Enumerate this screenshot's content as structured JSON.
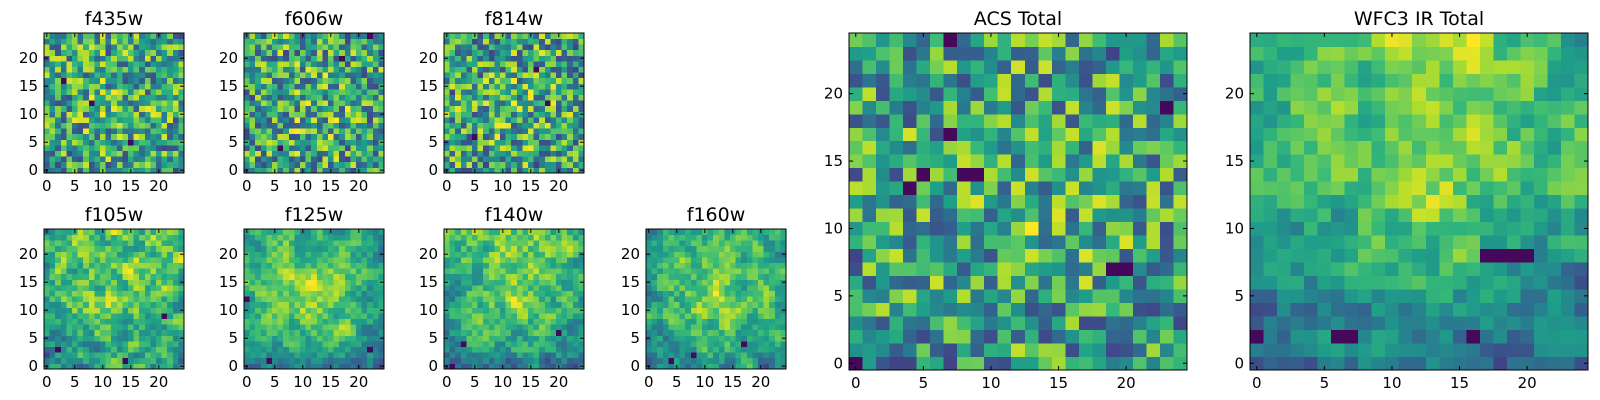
{
  "chart_data": [
    {
      "type": "heatmap",
      "title": "f435w",
      "grid": [
        25,
        25
      ],
      "x_ticks": [
        "0",
        "5",
        "10",
        "15",
        "20"
      ],
      "y_ticks": [
        "0",
        "5",
        "10",
        "15",
        "20"
      ],
      "xlim": [
        -0.5,
        24.5
      ],
      "ylim": [
        -0.5,
        24.5
      ],
      "colormap": "viridis",
      "texture": "noise",
      "seed": 11,
      "center_bias": 0.15,
      "top_bias": 0.0,
      "dark_spots": [
        [
          8,
          12
        ],
        [
          3,
          16
        ],
        [
          15,
          5
        ]
      ]
    },
    {
      "type": "heatmap",
      "title": "f606w",
      "grid": [
        25,
        25
      ],
      "x_ticks": [
        "0",
        "5",
        "10",
        "15",
        "20"
      ],
      "y_ticks": [
        "0",
        "5",
        "10",
        "15",
        "20"
      ],
      "xlim": [
        -0.5,
        24.5
      ],
      "ylim": [
        -0.5,
        24.5
      ],
      "colormap": "viridis",
      "texture": "noise",
      "seed": 23,
      "center_bias": 0.15,
      "top_bias": 0.0,
      "dark_spots": [
        [
          22,
          24
        ],
        [
          6,
          4
        ],
        [
          17,
          20
        ]
      ]
    },
    {
      "type": "heatmap",
      "title": "f814w",
      "grid": [
        25,
        25
      ],
      "x_ticks": [
        "0",
        "5",
        "10",
        "15",
        "20"
      ],
      "y_ticks": [
        "0",
        "5",
        "10",
        "15",
        "20"
      ],
      "xlim": [
        -0.5,
        24.5
      ],
      "ylim": [
        -0.5,
        24.5
      ],
      "colormap": "viridis",
      "texture": "noise",
      "seed": 37,
      "center_bias": 0.15,
      "top_bias": 0.0,
      "dark_spots": [
        [
          16,
          18
        ],
        [
          18,
          12
        ],
        [
          5,
          6
        ]
      ]
    },
    {
      "type": "heatmap",
      "title": "f105w",
      "grid": [
        25,
        25
      ],
      "x_ticks": [
        "0",
        "5",
        "10",
        "15",
        "20"
      ],
      "y_ticks": [
        "0",
        "5",
        "10",
        "15",
        "20"
      ],
      "xlim": [
        -0.5,
        24.5
      ],
      "ylim": [
        -0.5,
        24.5
      ],
      "colormap": "viridis",
      "texture": "smooth",
      "seed": 41,
      "center_bias": 0.25,
      "top_bias": 0.15,
      "dark_spots": [
        [
          14,
          1
        ],
        [
          2,
          3
        ],
        [
          21,
          9
        ]
      ]
    },
    {
      "type": "heatmap",
      "title": "f125w",
      "grid": [
        25,
        25
      ],
      "x_ticks": [
        "0",
        "5",
        "10",
        "15",
        "20"
      ],
      "y_ticks": [
        "0",
        "5",
        "10",
        "15",
        "20"
      ],
      "xlim": [
        -0.5,
        24.5
      ],
      "ylim": [
        -0.5,
        24.5
      ],
      "colormap": "viridis",
      "texture": "smooth",
      "seed": 53,
      "center_bias": 0.45,
      "top_bias": 0.2,
      "dark_spots": [
        [
          0,
          12
        ],
        [
          22,
          3
        ],
        [
          4,
          1
        ]
      ]
    },
    {
      "type": "heatmap",
      "title": "f140w",
      "grid": [
        25,
        25
      ],
      "x_ticks": [
        "0",
        "5",
        "10",
        "15",
        "20"
      ],
      "y_ticks": [
        "0",
        "5",
        "10",
        "15",
        "20"
      ],
      "xlim": [
        -0.5,
        24.5
      ],
      "ylim": [
        -0.5,
        24.5
      ],
      "colormap": "viridis",
      "texture": "smooth",
      "seed": 67,
      "center_bias": 0.3,
      "top_bias": 0.3,
      "dark_spots": [
        [
          3,
          4
        ],
        [
          20,
          6
        ],
        [
          1,
          0
        ]
      ]
    },
    {
      "type": "heatmap",
      "title": "f160w",
      "grid": [
        25,
        25
      ],
      "x_ticks": [
        "0",
        "5",
        "10",
        "15",
        "20"
      ],
      "y_ticks": [
        "0",
        "5",
        "10",
        "15",
        "20"
      ],
      "xlim": [
        -0.5,
        24.5
      ],
      "ylim": [
        -0.5,
        24.5
      ],
      "colormap": "viridis",
      "texture": "smooth",
      "seed": 79,
      "center_bias": 0.45,
      "top_bias": 0.1,
      "dark_spots": [
        [
          4,
          1
        ],
        [
          17,
          4
        ],
        [
          8,
          2
        ]
      ]
    },
    {
      "type": "heatmap",
      "title": "ACS Total",
      "grid": [
        25,
        25
      ],
      "x_ticks": [
        "0",
        "5",
        "10",
        "15",
        "20"
      ],
      "y_ticks": [
        "0",
        "5",
        "10",
        "15",
        "20"
      ],
      "xlim": [
        -0.5,
        24.5
      ],
      "ylim": [
        -0.5,
        24.5
      ],
      "colormap": "viridis",
      "texture": "noise",
      "seed": 91,
      "center_bias": 0.2,
      "top_bias": 0.0,
      "dark_spots": [
        [
          4,
          13
        ],
        [
          5,
          14
        ],
        [
          8,
          14
        ],
        [
          9,
          14
        ],
        [
          7,
          17
        ],
        [
          19,
          7
        ],
        [
          20,
          7
        ],
        [
          23,
          19
        ],
        [
          0,
          0
        ],
        [
          7,
          24
        ]
      ]
    },
    {
      "type": "heatmap",
      "title": "WFC3 IR Total",
      "grid": [
        25,
        25
      ],
      "x_ticks": [
        "0",
        "5",
        "10",
        "15",
        "20"
      ],
      "y_ticks": [
        "0",
        "5",
        "10",
        "15",
        "20"
      ],
      "xlim": [
        -0.5,
        24.5
      ],
      "ylim": [
        -0.5,
        24.5
      ],
      "colormap": "viridis",
      "texture": "smooth",
      "seed": 103,
      "center_bias": 0.5,
      "top_bias": 0.5,
      "dark_spots": [
        [
          17,
          8
        ],
        [
          18,
          8
        ],
        [
          19,
          8
        ],
        [
          20,
          8
        ],
        [
          6,
          2
        ],
        [
          7,
          2
        ],
        [
          16,
          2
        ],
        [
          0,
          2
        ]
      ]
    }
  ]
}
